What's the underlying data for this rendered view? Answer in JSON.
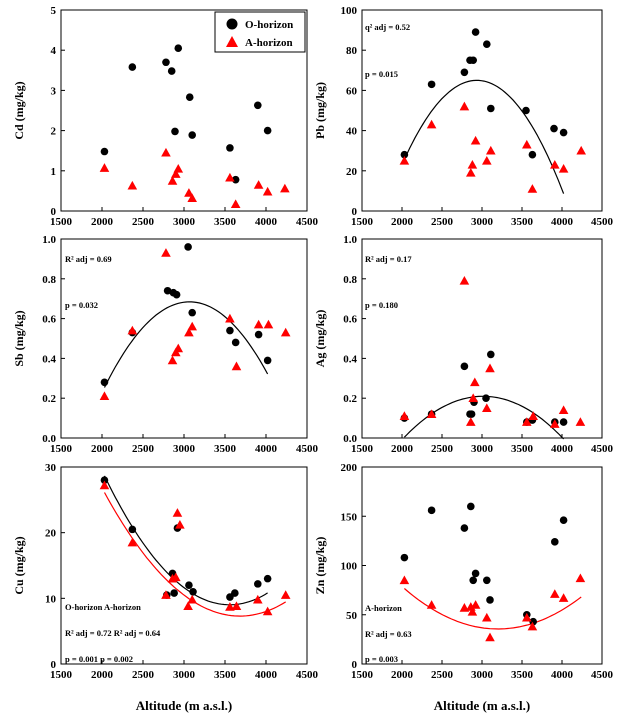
{
  "figure": {
    "x_axis_label": "Altitude (m a.s.l.)",
    "colors": {
      "o_horizon": "#000000",
      "a_horizon": "#ff0000",
      "axis": "#000000"
    }
  },
  "chart_data": [
    {
      "type": "scatter",
      "panel": "cd",
      "ylabel": "Cd (mg/kg)",
      "xlabel": "",
      "xlim": [
        1500,
        4500
      ],
      "ylim": [
        0,
        5
      ],
      "xticks": [
        1500,
        2000,
        2500,
        3000,
        3500,
        4000,
        4500
      ],
      "yticks": [
        0,
        1,
        2,
        3,
        4,
        5
      ],
      "legend": {
        "position": "top-right",
        "entries": [
          "O-horizon",
          "A-horizon"
        ]
      },
      "annotations": [],
      "series": [
        {
          "name": "O-horizon",
          "color": "#000000",
          "marker": "circle",
          "points": [
            [
              2030,
              1.48
            ],
            [
              2370,
              3.58
            ],
            [
              2780,
              3.7
            ],
            [
              2850,
              3.48
            ],
            [
              2890,
              1.98
            ],
            [
              2930,
              4.05
            ],
            [
              3070,
              2.83
            ],
            [
              3100,
              1.89
            ],
            [
              3560,
              1.57
            ],
            [
              3630,
              0.78
            ],
            [
              3900,
              2.63
            ],
            [
              4020,
              2.0
            ]
          ]
        },
        {
          "name": "A-horizon",
          "color": "#ff0000",
          "marker": "triangle",
          "points": [
            [
              2030,
              1.07
            ],
            [
              2370,
              0.63
            ],
            [
              2780,
              1.45
            ],
            [
              2860,
              0.75
            ],
            [
              2900,
              0.92
            ],
            [
              2930,
              1.05
            ],
            [
              3060,
              0.45
            ],
            [
              3100,
              0.32
            ],
            [
              3560,
              0.83
            ],
            [
              3630,
              0.17
            ],
            [
              3910,
              0.65
            ],
            [
              4020,
              0.48
            ],
            [
              4230,
              0.56
            ]
          ]
        }
      ],
      "fits": []
    },
    {
      "type": "scatter",
      "panel": "pb",
      "ylabel": "Pb (mg/kg)",
      "xlabel": "",
      "xlim": [
        1500,
        4500
      ],
      "ylim": [
        0,
        100
      ],
      "xticks": [
        1500,
        2000,
        2500,
        3000,
        3500,
        4000,
        4500
      ],
      "yticks": [
        0,
        20,
        40,
        60,
        80,
        100
      ],
      "annotations": [
        "q² adj = 0.52",
        "p = 0.015"
      ],
      "series": [
        {
          "name": "O-horizon",
          "color": "#000000",
          "marker": "circle",
          "points": [
            [
              2030,
              28
            ],
            [
              2370,
              63
            ],
            [
              2780,
              69
            ],
            [
              2850,
              75
            ],
            [
              2890,
              75
            ],
            [
              2920,
              89
            ],
            [
              3060,
              83
            ],
            [
              3110,
              51
            ],
            [
              3550,
              50
            ],
            [
              3630,
              28
            ],
            [
              3900,
              41
            ],
            [
              4020,
              39
            ]
          ]
        },
        {
          "name": "A-horizon",
          "color": "#ff0000",
          "marker": "triangle",
          "points": [
            [
              2030,
              25
            ],
            [
              2370,
              43
            ],
            [
              2780,
              52
            ],
            [
              2860,
              19
            ],
            [
              2880,
              23
            ],
            [
              2920,
              35
            ],
            [
              3060,
              25
            ],
            [
              3110,
              30
            ],
            [
              3560,
              33
            ],
            [
              3630,
              11
            ],
            [
              3910,
              23
            ],
            [
              4020,
              21
            ],
            [
              4240,
              30
            ]
          ]
        }
      ],
      "fits": [
        {
          "color": "#000000",
          "from": 2030,
          "to": 4020,
          "coeffs": [
            -347.7,
            0.2812,
            -4.79e-05
          ]
        }
      ]
    },
    {
      "type": "scatter",
      "panel": "sb",
      "ylabel": "Sb (mg/kg)",
      "xlabel": "",
      "xlim": [
        1500,
        4500
      ],
      "ylim": [
        0,
        1.0
      ],
      "xticks": [
        1500,
        2000,
        2500,
        3000,
        3500,
        4000,
        4500
      ],
      "yticks": [
        0.0,
        0.2,
        0.4,
        0.6,
        0.8,
        1.0
      ],
      "annotations": [
        "R² adj = 0.69",
        "p = 0.032"
      ],
      "series": [
        {
          "name": "O-horizon",
          "color": "#000000",
          "marker": "circle",
          "points": [
            [
              2030,
              0.28
            ],
            [
              2370,
              0.53
            ],
            [
              2800,
              0.74
            ],
            [
              2870,
              0.73
            ],
            [
              2910,
              0.72
            ],
            [
              3050,
              0.96
            ],
            [
              3100,
              0.63
            ],
            [
              3560,
              0.54
            ],
            [
              3630,
              0.48
            ],
            [
              3910,
              0.52
            ],
            [
              4020,
              0.39
            ]
          ]
        },
        {
          "name": "A-horizon",
          "color": "#ff0000",
          "marker": "triangle",
          "points": [
            [
              2030,
              0.21
            ],
            [
              2370,
              0.54
            ],
            [
              2780,
              0.93
            ],
            [
              2860,
              0.39
            ],
            [
              2900,
              0.43
            ],
            [
              2930,
              0.45
            ],
            [
              3060,
              0.53
            ],
            [
              3100,
              0.56
            ],
            [
              3560,
              0.6
            ],
            [
              3640,
              0.36
            ],
            [
              3910,
              0.57
            ],
            [
              4030,
              0.57
            ],
            [
              4240,
              0.53
            ]
          ]
        }
      ],
      "fits": [
        {
          "color": "#000000",
          "from": 2030,
          "to": 4020,
          "coeffs": [
            -3.0795,
            0.002454,
            -4e-07
          ]
        }
      ]
    },
    {
      "type": "scatter",
      "panel": "ag",
      "ylabel": "Ag (mg/kg)",
      "xlabel": "",
      "xlim": [
        1500,
        4500
      ],
      "ylim": [
        0,
        1.0
      ],
      "xticks": [
        1500,
        2000,
        2500,
        3000,
        3500,
        4000,
        4500
      ],
      "yticks": [
        0.0,
        0.2,
        0.4,
        0.6,
        0.8,
        1.0
      ],
      "annotations": [
        "R² adj = 0.17",
        "p = 0.180"
      ],
      "series": [
        {
          "name": "O-horizon",
          "color": "#000000",
          "marker": "circle",
          "points": [
            [
              2030,
              0.1
            ],
            [
              2370,
              0.12
            ],
            [
              2780,
              0.36
            ],
            [
              2850,
              0.12
            ],
            [
              2870,
              0.12
            ],
            [
              2900,
              0.18
            ],
            [
              3050,
              0.2
            ],
            [
              3110,
              0.42
            ],
            [
              3560,
              0.08
            ],
            [
              3630,
              0.09
            ],
            [
              3910,
              0.08
            ],
            [
              4020,
              0.08
            ]
          ]
        },
        {
          "name": "A-horizon",
          "color": "#ff0000",
          "marker": "triangle",
          "points": [
            [
              2030,
              0.11
            ],
            [
              2370,
              0.12
            ],
            [
              2780,
              0.79
            ],
            [
              2860,
              0.08
            ],
            [
              2890,
              0.2
            ],
            [
              2910,
              0.28
            ],
            [
              3060,
              0.15
            ],
            [
              3100,
              0.35
            ],
            [
              3560,
              0.08
            ],
            [
              3640,
              0.11
            ],
            [
              3910,
              0.07
            ],
            [
              4020,
              0.14
            ],
            [
              4230,
              0.08
            ]
          ]
        }
      ],
      "fits": [
        {
          "color": "#000000",
          "from": 2030,
          "to": 4020,
          "coeffs": [
            -1.7165,
            0.001278,
            -2.12e-07
          ]
        }
      ]
    },
    {
      "type": "scatter",
      "panel": "cu",
      "ylabel": "Cu (mg/kg)",
      "xlabel": "Altitude (m a.s.l.)",
      "xlim": [
        1500,
        4500
      ],
      "ylim": [
        0,
        30
      ],
      "xticks": [
        1500,
        2000,
        2500,
        3000,
        3500,
        4000,
        4500
      ],
      "yticks": [
        0,
        10,
        20,
        30
      ],
      "annotations": [
        "O-horizon   A-horizon",
        "R² adj = 0.72   R² adj = 0.64",
        "p = 0.001   p = 0.002"
      ],
      "series": [
        {
          "name": "O-horizon",
          "color": "#000000",
          "marker": "circle",
          "points": [
            [
              2030,
              28
            ],
            [
              2370,
              20.5
            ],
            [
              2790,
              10.5
            ],
            [
              2860,
              13.8
            ],
            [
              2880,
              10.8
            ],
            [
              2920,
              20.7
            ],
            [
              3060,
              12
            ],
            [
              3110,
              11
            ],
            [
              3560,
              10.2
            ],
            [
              3620,
              10.8
            ],
            [
              3900,
              12.2
            ],
            [
              4020,
              13
            ]
          ]
        },
        {
          "name": "A-horizon",
          "color": "#ff0000",
          "marker": "triangle",
          "points": [
            [
              2030,
              27.2
            ],
            [
              2370,
              18.5
            ],
            [
              2780,
              10.5
            ],
            [
              2860,
              13
            ],
            [
              2900,
              13.2
            ],
            [
              2920,
              23
            ],
            [
              2950,
              21.2
            ],
            [
              3050,
              8.8
            ],
            [
              3100,
              9.8
            ],
            [
              3560,
              8.7
            ],
            [
              3640,
              8.8
            ],
            [
              3900,
              9.8
            ],
            [
              4020,
              8
            ],
            [
              4240,
              10.5
            ]
          ]
        }
      ],
      "fits": [
        {
          "color": "#000000",
          "from": 2030,
          "to": 4020,
          "coeffs": [
            115.55,
            -0.0599,
            8.42e-06
          ]
        },
        {
          "color": "#ff0000",
          "from": 2030,
          "to": 4240,
          "coeffs": [
            100.8,
            -0.0508,
            6.9e-06
          ]
        }
      ]
    },
    {
      "type": "scatter",
      "panel": "zn",
      "ylabel": "Zn (mg/kg)",
      "xlabel": "Altitude (m a.s.l.)",
      "xlim": [
        1500,
        4500
      ],
      "ylim": [
        0,
        200
      ],
      "xticks": [
        1500,
        2000,
        2500,
        3000,
        3500,
        4000,
        4500
      ],
      "yticks": [
        0,
        50,
        100,
        150,
        200
      ],
      "annotations": [
        "A-horizon",
        "R² adj = 0.63",
        "p = 0.003"
      ],
      "series": [
        {
          "name": "O-horizon",
          "color": "#000000",
          "marker": "circle",
          "points": [
            [
              2030,
              108
            ],
            [
              2370,
              156
            ],
            [
              2780,
              138
            ],
            [
              2860,
              160
            ],
            [
              2890,
              85
            ],
            [
              2920,
              92
            ],
            [
              3060,
              85
            ],
            [
              3100,
              65
            ],
            [
              3560,
              50
            ],
            [
              3640,
              43
            ],
            [
              3910,
              124
            ],
            [
              4020,
              146
            ]
          ]
        },
        {
          "name": "A-horizon",
          "color": "#ff0000",
          "marker": "triangle",
          "points": [
            [
              2030,
              85
            ],
            [
              2370,
              60
            ],
            [
              2780,
              57
            ],
            [
              2860,
              58
            ],
            [
              2880,
              53
            ],
            [
              2920,
              60
            ],
            [
              3060,
              47
            ],
            [
              3100,
              27
            ],
            [
              3560,
              47
            ],
            [
              3630,
              38
            ],
            [
              3910,
              71
            ],
            [
              4020,
              67
            ],
            [
              4230,
              87
            ]
          ]
        }
      ],
      "fits": [
        {
          "color": "#ff0000",
          "from": 2030,
          "to": 4240,
          "coeffs": [
            342.7,
            -0.19198,
            3e-05
          ]
        }
      ]
    }
  ]
}
